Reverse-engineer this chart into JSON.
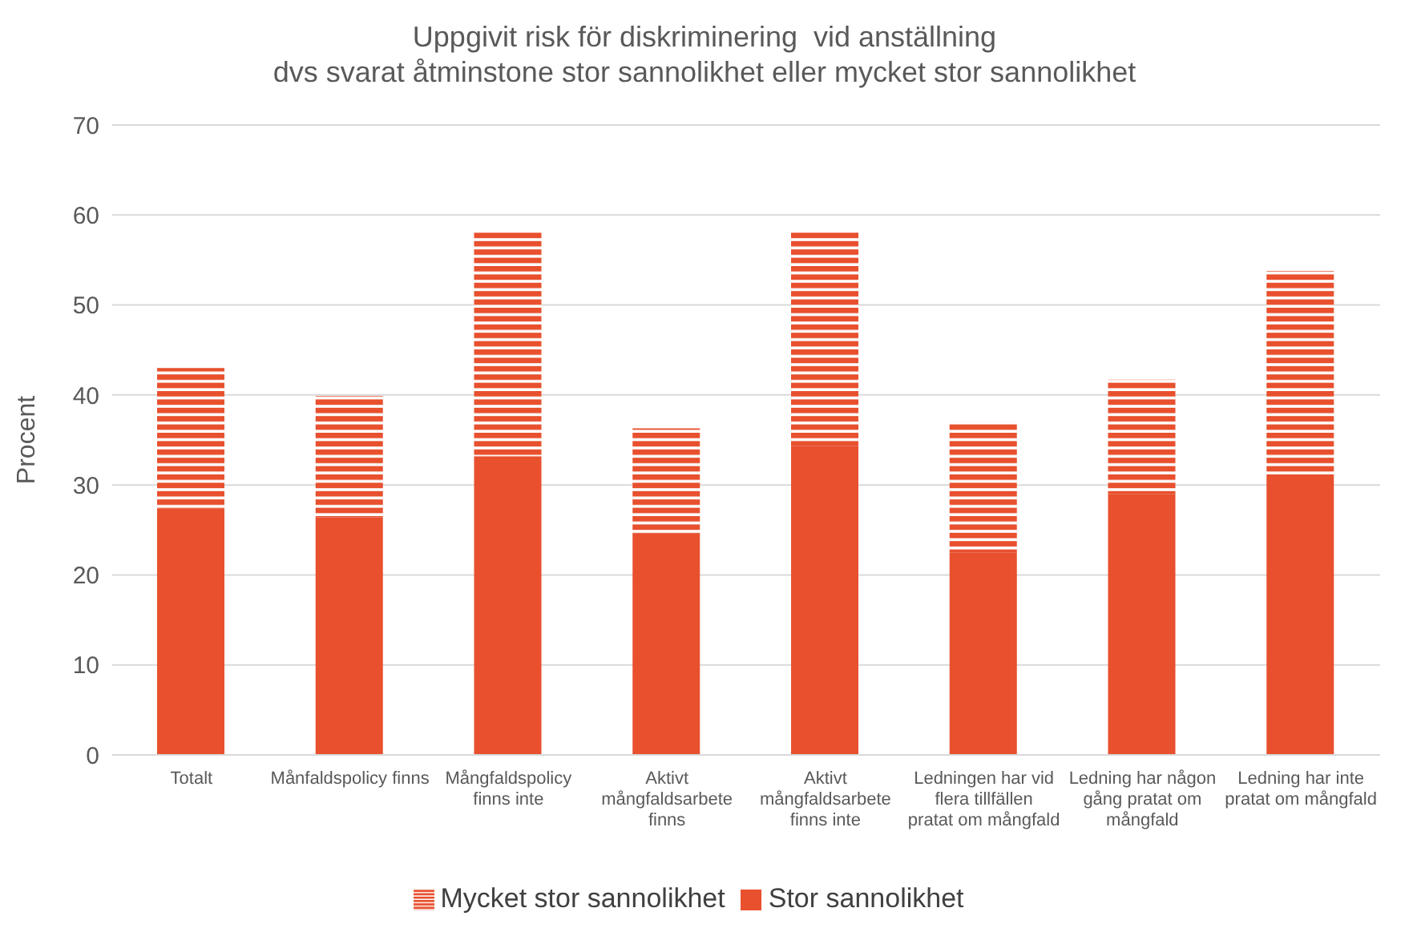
{
  "chart_data": {
    "type": "bar",
    "title": "Uppgivit risk för diskriminering  vid anställning\ndvs svarat åtminstone stor sannolikhet eller mycket stor sannolikhet",
    "ylabel": "Procent",
    "categories": [
      "Totalt",
      "Månfaldspolicy finns",
      "Mångfaldspolicy finns inte",
      "Aktivt mångfaldsarbete finns",
      "Aktivt mångfaldsarbete finns inte",
      "Ledningen har vid flera tillfällen pratat om mångfald",
      "Ledning har någon gång pratat om mångfald",
      "Ledning har inte pratat om mångfald"
    ],
    "series": [
      {
        "name": "Stor sannolikhet",
        "color": "#e8502e",
        "values": [
          27.4,
          26.4,
          33.2,
          24.6,
          34.3,
          22.5,
          29.0,
          31.0
        ]
      },
      {
        "name": "Mycket stor sannolikhet",
        "color": "#e8502e",
        "values": [
          15.6,
          13.5,
          25.0,
          11.7,
          23.9,
          14.5,
          12.7,
          22.8
        ]
      }
    ],
    "stacked": true,
    "ylim": [
      0,
      70
    ],
    "yticks": [
      0,
      10,
      20,
      30,
      40,
      50,
      60,
      70
    ],
    "grid": "y",
    "legend": "bottom"
  }
}
